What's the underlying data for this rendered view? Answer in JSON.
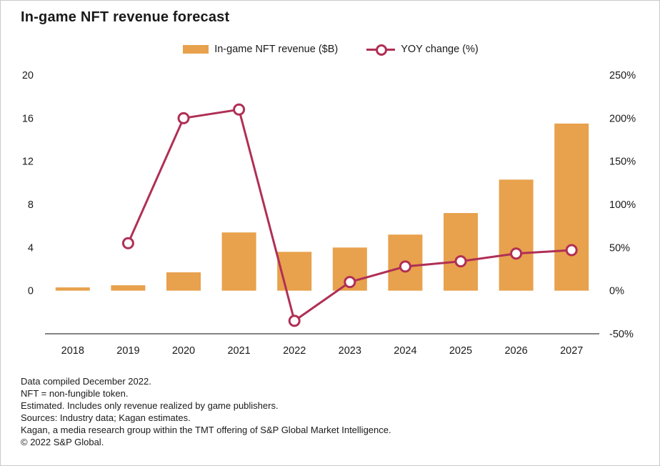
{
  "title": "In-game NFT revenue forecast",
  "legend": {
    "bar_label": "In-game NFT revenue ($B)",
    "line_label": "YOY change (%)"
  },
  "colors": {
    "bar": "#E8A14C",
    "line": "#B02F55",
    "marker_fill": "#FFFFFF",
    "axis_line": "#3a3a3a",
    "text": "#1a1a1a"
  },
  "chart_data": {
    "type": "bar+line",
    "title": "In-game NFT revenue forecast",
    "categories": [
      "2018",
      "2019",
      "2020",
      "2021",
      "2022",
      "2023",
      "2024",
      "2025",
      "2026",
      "2027"
    ],
    "series": [
      {
        "name": "In-game NFT revenue ($B)",
        "type": "bar",
        "axis": "left",
        "values": [
          0.3,
          0.5,
          1.7,
          5.4,
          3.6,
          4.0,
          5.2,
          7.2,
          10.3,
          15.5
        ]
      },
      {
        "name": "YOY change (%)",
        "type": "line",
        "axis": "right",
        "values": [
          null,
          55,
          200,
          210,
          -35,
          10,
          28,
          34,
          43,
          47
        ]
      }
    ],
    "left_axis": {
      "min": 0,
      "max": 20,
      "ticks": [
        0,
        4,
        8,
        12,
        16,
        20
      ]
    },
    "right_axis": {
      "min": -50,
      "max": 250,
      "tick_values": [
        -50,
        0,
        50,
        100,
        150,
        200,
        250
      ],
      "tick_labels": [
        "-50%",
        "0%",
        "50%",
        "100%",
        "150%",
        "200%",
        "250%"
      ]
    },
    "grid": false,
    "legend_position": "top"
  },
  "footnotes": [
    "Data compiled December 2022.",
    "NFT = non-fungible token.",
    "Estimated. Includes only revenue realized by game publishers.",
    "Sources: Industry data; Kagan estimates.",
    "Kagan, a media research group within the TMT offering of S&P Global Market Intelligence.",
    "© 2022 S&P Global."
  ]
}
